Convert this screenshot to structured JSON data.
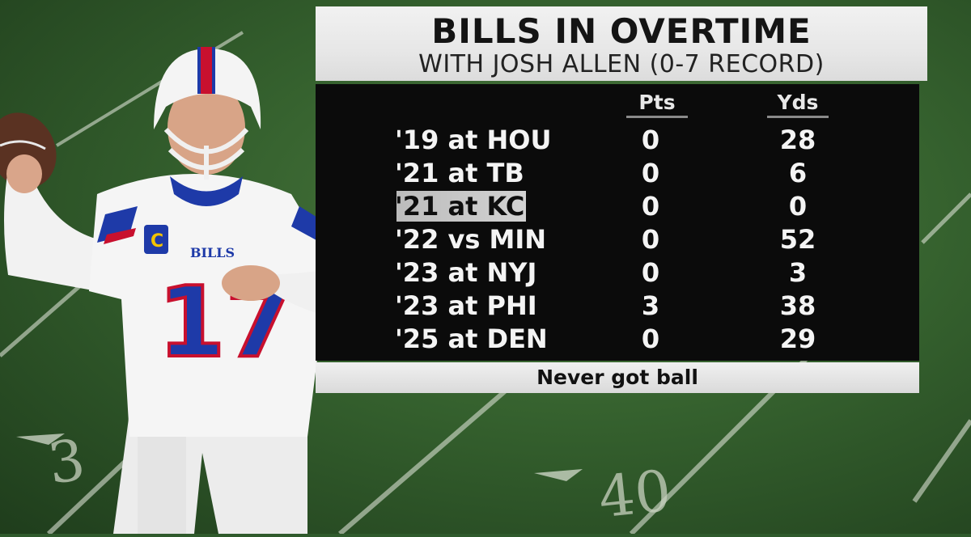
{
  "graphic": {
    "title": "BILLS IN OVERTIME",
    "subtitle": "WITH JOSH ALLEN (0-7 RECORD)",
    "columns": {
      "points": "Pts",
      "yards": "Yds"
    },
    "rows": [
      {
        "game": "'19 at HOU",
        "pts": "0",
        "yds": "28"
      },
      {
        "game": "'21 at TB",
        "pts": "0",
        "yds": "6"
      },
      {
        "game": "'21 at KC",
        "pts": "0",
        "yds": "0",
        "highlighted": true
      },
      {
        "game": "'22 vs MIN",
        "pts": "0",
        "yds": "52"
      },
      {
        "game": "'23 at NYJ",
        "pts": "0",
        "yds": "3"
      },
      {
        "game": "'23 at PHI",
        "pts": "3",
        "yds": "38"
      },
      {
        "game": "'25 at DEN",
        "pts": "0",
        "yds": "29"
      }
    ],
    "footer": "Never got ball"
  },
  "field": {
    "yard_numbers": [
      "3",
      "40"
    ]
  },
  "player": {
    "jersey_number": "17",
    "jersey_text": "BILLS",
    "captain_patch": "C"
  },
  "colors": {
    "bills_blue": "#1e3aa8",
    "bills_red": "#c8102e",
    "turf": "#35612e"
  }
}
